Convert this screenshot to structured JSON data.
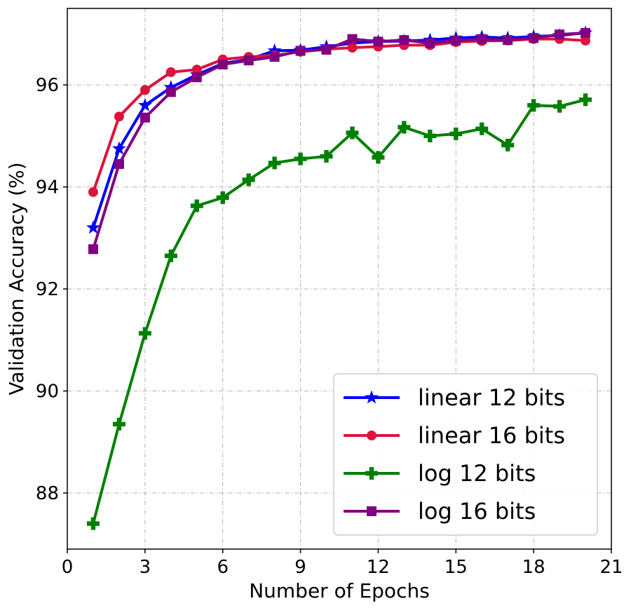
{
  "chart_data": {
    "type": "line",
    "title": "",
    "xlabel": "Number of Epochs",
    "ylabel": "Validation Accuracy (%)",
    "xlim": [
      0,
      21
    ],
    "ylim": [
      86.9,
      97.5
    ],
    "xticks": [
      0,
      3,
      6,
      9,
      12,
      15,
      18,
      21
    ],
    "yticks": [
      88,
      90,
      92,
      94,
      96
    ],
    "grid": true,
    "legend_position": "lower-right",
    "x": [
      1,
      2,
      3,
      4,
      5,
      6,
      7,
      8,
      9,
      10,
      11,
      12,
      13,
      14,
      15,
      16,
      17,
      18,
      19,
      20
    ],
    "series": [
      {
        "name": "linear 12 bits",
        "color": "#0000ff",
        "marker": "star",
        "values": [
          93.2,
          94.75,
          95.6,
          95.95,
          96.2,
          96.42,
          96.5,
          96.67,
          96.68,
          96.75,
          96.82,
          96.85,
          96.86,
          96.88,
          96.92,
          96.94,
          96.92,
          96.95,
          96.97,
          97.02
        ]
      },
      {
        "name": "linear 16 bits",
        "color": "#dc143c",
        "marker": "circle",
        "values": [
          93.9,
          95.38,
          95.9,
          96.25,
          96.3,
          96.5,
          96.55,
          96.58,
          96.65,
          96.7,
          96.73,
          96.75,
          96.78,
          96.78,
          96.84,
          96.86,
          96.87,
          96.9,
          96.9,
          96.87
        ]
      },
      {
        "name": "log 12 bits",
        "color": "#007f00",
        "marker": "plus",
        "values": [
          87.4,
          89.35,
          91.13,
          92.65,
          93.63,
          93.79,
          94.14,
          94.47,
          94.55,
          94.6,
          95.06,
          94.58,
          95.17,
          95.0,
          95.04,
          95.14,
          94.82,
          95.6,
          95.58,
          95.71
        ]
      },
      {
        "name": "log 16 bits",
        "color": "#800080",
        "marker": "square",
        "values": [
          92.78,
          94.45,
          95.36,
          95.86,
          96.15,
          96.4,
          96.48,
          96.55,
          96.67,
          96.69,
          96.9,
          96.85,
          96.88,
          96.82,
          96.87,
          96.9,
          96.88,
          96.92,
          96.99,
          97.02
        ]
      }
    ]
  }
}
